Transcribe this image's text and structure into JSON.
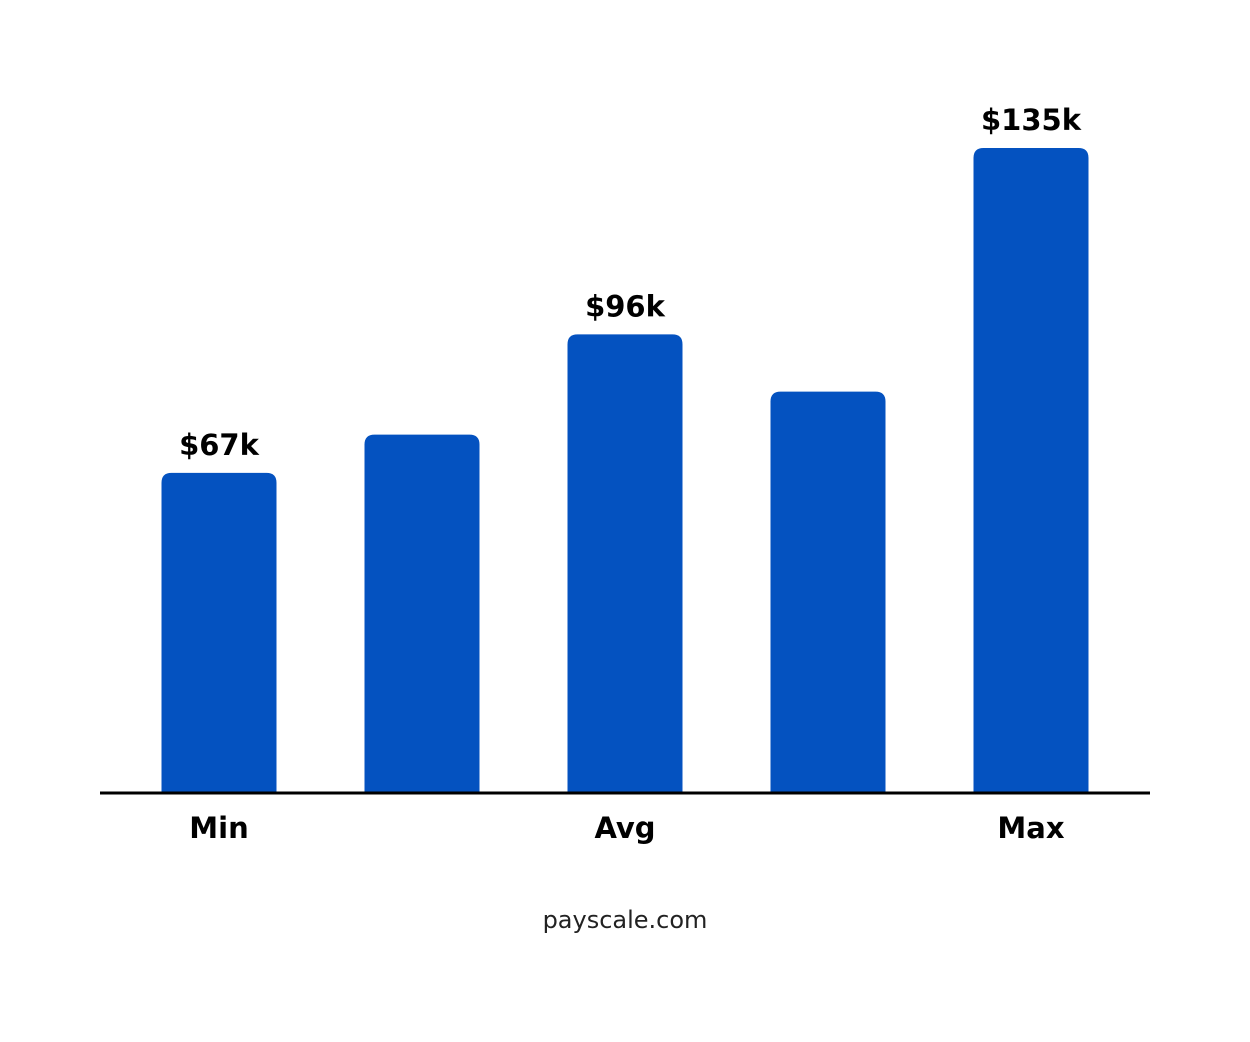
{
  "chart_data": {
    "type": "bar",
    "categories": [
      "Min",
      null,
      "Avg",
      null,
      "Max"
    ],
    "values": [
      67,
      75,
      96,
      84,
      135
    ],
    "value_labels": [
      "$67k",
      null,
      "$96k",
      null,
      "$135k"
    ],
    "color": "#0452c0",
    "ylim": [
      0,
      135
    ],
    "source": "payscale.com"
  }
}
